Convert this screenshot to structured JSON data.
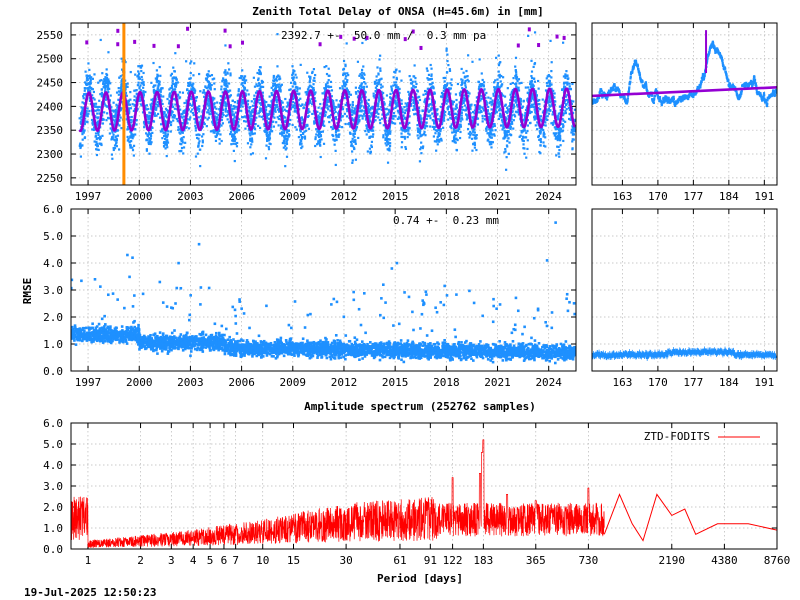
{
  "title": "Zenith Total Delay of ONSA (H=45.6m) in [mm]",
  "timestamp": "19-Jul-2025 12:50:23",
  "colors": {
    "data": "#1e90ff",
    "model": "#9400d3",
    "marker": "#ff8c00",
    "spectrum": "#ff0000"
  },
  "chart_data": [
    {
      "id": "ztd_timeseries",
      "type": "scatter",
      "annotation": "2392.7 +-  50.0 mm /  0.3 mm pa",
      "xlim": [
        1996.0,
        2025.6
      ],
      "ylim": [
        2235,
        2575
      ],
      "xticks": [
        1997,
        2000,
        2003,
        2006,
        2009,
        2012,
        2015,
        2018,
        2021,
        2024
      ],
      "yticks": [
        2250,
        2300,
        2350,
        2400,
        2450,
        2500,
        2550
      ],
      "mean": 2392.7,
      "seasonal_amplitude": 50.0,
      "trend_per_year": 0.3,
      "start_year": 1996.5,
      "marker_year": 1999.1,
      "grid": true
    },
    {
      "id": "ztd_recent",
      "type": "scatter",
      "xlim": [
        157.0,
        193.5
      ],
      "ylim": [
        2235,
        2575
      ],
      "xticks": [
        163,
        170,
        177,
        184,
        191
      ],
      "trend_start": 2422,
      "trend_end": 2440,
      "grid": true
    },
    {
      "id": "rmse_timeseries",
      "type": "scatter",
      "ylabel": "RMSE",
      "annotation": "0.74 +-  0.23 mm",
      "xlim": [
        1996.0,
        2025.6
      ],
      "ylim": [
        0.0,
        6.0
      ],
      "xticks": [
        1997,
        2000,
        2003,
        2006,
        2009,
        2012,
        2015,
        2018,
        2021,
        2024
      ],
      "yticks": [
        "0.0",
        "1.0",
        "2.0",
        "3.0",
        "4.0",
        "5.0",
        "6.0"
      ],
      "mean": 0.74,
      "std": 0.23,
      "grid": true
    },
    {
      "id": "rmse_recent",
      "type": "scatter",
      "xlim": [
        157.0,
        193.5
      ],
      "ylim": [
        0.0,
        6.0
      ],
      "xticks": [
        163,
        170,
        177,
        184,
        191
      ],
      "level": 0.6,
      "grid": true
    },
    {
      "id": "amplitude_spectrum",
      "type": "line",
      "title": "Amplitude spectrum (252762 samples)",
      "xlabel": "Period [days]",
      "xscale": "log",
      "xlim": [
        0.8,
        8760
      ],
      "ylim": [
        0.0,
        6.0
      ],
      "xticks": [
        1,
        2,
        3,
        4,
        5,
        6,
        7,
        10,
        15,
        30,
        61,
        91,
        122,
        183,
        365,
        730,
        2190,
        4380,
        8760
      ],
      "yticks": [
        "0.0",
        "1.0",
        "2.0",
        "3.0",
        "4.0",
        "5.0",
        "6.0"
      ],
      "legend": "ZTD-FODITS",
      "legend_position": "top-right",
      "peaks": [
        {
          "period": 183,
          "amplitude": 5.2
        },
        {
          "period": 180,
          "amplitude": 4.6
        },
        {
          "period": 175,
          "amplitude": 3.6
        },
        {
          "period": 122,
          "amplitude": 3.4
        },
        {
          "period": 365,
          "amplitude": 2.3
        },
        {
          "period": 730,
          "amplitude": 2.9
        },
        {
          "period": 250,
          "amplitude": 2.6
        }
      ],
      "low_period_envelope": [
        {
          "period": 1,
          "amplitude": 0.4
        },
        {
          "period": 3,
          "amplitude": 0.8
        },
        {
          "period": 10,
          "amplitude": 1.4
        },
        {
          "period": 30,
          "amplitude": 2.2
        },
        {
          "period": 100,
          "amplitude": 2.5
        }
      ],
      "long_period_line": [
        {
          "period": 900,
          "amplitude": 0.7
        },
        {
          "period": 1100,
          "amplitude": 2.6
        },
        {
          "period": 1300,
          "amplitude": 1.2
        },
        {
          "period": 1500,
          "amplitude": 0.4
        },
        {
          "period": 1800,
          "amplitude": 2.6
        },
        {
          "period": 2190,
          "amplitude": 1.6
        },
        {
          "period": 2600,
          "amplitude": 1.9
        },
        {
          "period": 3000,
          "amplitude": 0.7
        },
        {
          "period": 4000,
          "amplitude": 1.2
        },
        {
          "period": 6000,
          "amplitude": 1.2
        },
        {
          "period": 8760,
          "amplitude": 0.9
        }
      ],
      "grid": true
    }
  ]
}
